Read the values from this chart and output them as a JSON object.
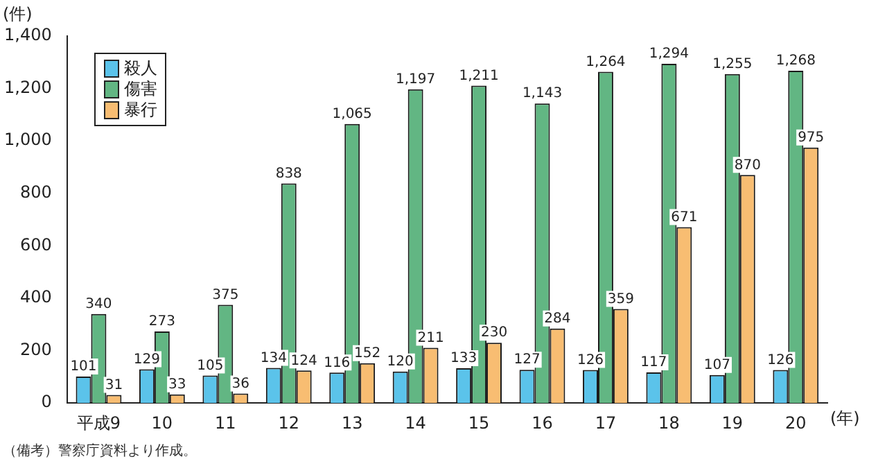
{
  "chart_data": {
    "type": "bar",
    "ylabel": "(件)",
    "xlabel": "(年)",
    "annotations": [
      "（備考）警察庁資料より作成。"
    ],
    "categories": [
      "平成9",
      "10",
      "11",
      "12",
      "13",
      "14",
      "15",
      "16",
      "17",
      "18",
      "19",
      "20"
    ],
    "series": [
      {
        "name": "殺人",
        "color": "#5bc3ea",
        "values": [
          101,
          129,
          105,
          134,
          116,
          120,
          133,
          127,
          126,
          117,
          107,
          126
        ],
        "value_labels": [
          "101",
          "129",
          "105",
          "134",
          "116",
          "120",
          "133",
          "127",
          "126",
          "117",
          "107",
          "126"
        ]
      },
      {
        "name": "傷害",
        "color": "#62b683",
        "values": [
          340,
          273,
          375,
          838,
          1065,
          1197,
          1211,
          1143,
          1264,
          1294,
          1255,
          1268
        ],
        "value_labels": [
          "340",
          "273",
          "375",
          "838",
          "1,065",
          "1,197",
          "1,211",
          "1,143",
          "1,264",
          "1,294",
          "1,255",
          "1,268"
        ]
      },
      {
        "name": "暴行",
        "color": "#f8bd72",
        "values": [
          31,
          33,
          36,
          124,
          152,
          211,
          230,
          284,
          359,
          671,
          870,
          975
        ],
        "value_labels": [
          "31",
          "33",
          "36",
          "124",
          "152",
          "211",
          "230",
          "284",
          "359",
          "671",
          "870",
          "975"
        ]
      }
    ],
    "ylim": [
      0,
      1400
    ],
    "yticks": [
      0,
      {
        "value": 200,
        "label": "200"
      },
      {
        "value": 400,
        "label": "400"
      },
      {
        "value": 600,
        "label": "600"
      },
      {
        "value": 800,
        "label": "800"
      },
      {
        "value": 1000,
        "label": "1,000"
      },
      {
        "value": 1200,
        "label": "1,200"
      },
      {
        "value": 1400,
        "label": "1,400"
      }
    ],
    "grid": false,
    "legend": "top left"
  }
}
